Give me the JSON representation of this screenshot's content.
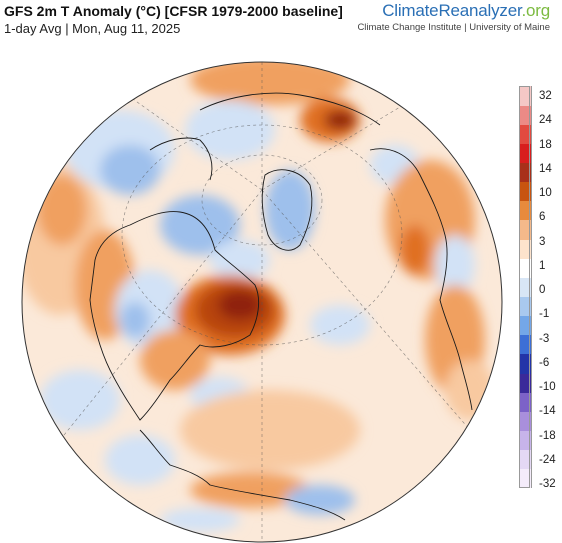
{
  "header": {
    "title": "GFS 2m T Anomaly (°C) [CFSR 1979-2000 baseline]",
    "subtitle": "1-day Avg | Mon, Aug 11, 2025"
  },
  "brand": {
    "part1": "Climate",
    "part2": "Reanalyzer",
    "part3": ".org",
    "affiliation": "Climate Change Institute | University of Maine"
  },
  "legend": {
    "ticks": [
      "32",
      "24",
      "18",
      "14",
      "10",
      "6",
      "3",
      "1",
      "0",
      "-1",
      "-3",
      "-6",
      "-10",
      "-14",
      "-18",
      "-24",
      "-32"
    ],
    "colors": [
      "#f5c8c6",
      "#ec8a86",
      "#e24a40",
      "#d81e1e",
      "#a8301a",
      "#c85410",
      "#e88a3c",
      "#f4b98a",
      "#fde3cc",
      "#ffffff",
      "#d8e6f6",
      "#a9c9ef",
      "#74a7e8",
      "#3d6fd6",
      "#2334a8",
      "#3a2a9a",
      "#7c62c8",
      "#a98fdc",
      "#c7b4ea",
      "#e4d8f4",
      "#f4ecfa"
    ]
  },
  "map": {
    "colors": {
      "ocean_base": "#fbe9d9",
      "warm_light": "#f8c9a0",
      "warm_mid": "#f0a060",
      "warm_strong": "#e07020",
      "hot": "#b84410",
      "hotter": "#8f2410",
      "cool_light": "#d2e2f6",
      "cool_mid": "#9ec0ec",
      "cool_strong": "#6a9ae0",
      "coast": "#1a1a1a"
    }
  }
}
